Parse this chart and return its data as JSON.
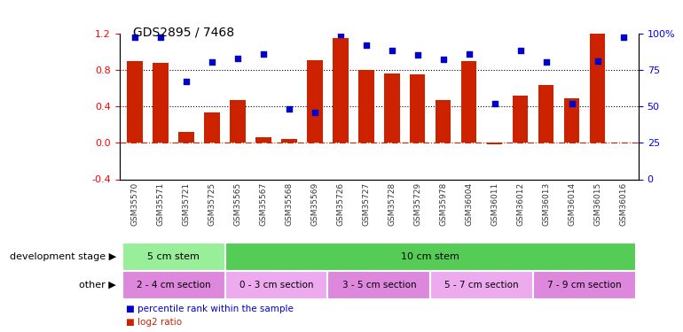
{
  "title": "GDS2895 / 7468",
  "samples": [
    "GSM35570",
    "GSM35571",
    "GSM35721",
    "GSM35725",
    "GSM35565",
    "GSM35567",
    "GSM35568",
    "GSM35569",
    "GSM35726",
    "GSM35727",
    "GSM35728",
    "GSM35729",
    "GSM35978",
    "GSM36004",
    "GSM36011",
    "GSM36012",
    "GSM36013",
    "GSM36014",
    "GSM36015",
    "GSM36016"
  ],
  "log2_ratio": [
    0.89,
    0.88,
    0.12,
    0.33,
    0.47,
    0.06,
    0.04,
    0.9,
    1.15,
    0.8,
    0.76,
    0.75,
    0.47,
    0.89,
    -0.02,
    0.52,
    0.63,
    0.49,
    1.2,
    0.0
  ],
  "percentile": [
    97,
    97,
    67,
    80,
    83,
    86,
    48,
    46,
    99,
    92,
    88,
    85,
    82,
    86,
    52,
    88,
    80,
    52,
    81,
    97
  ],
  "bar_color": "#cc2200",
  "dot_color": "#0000cc",
  "zero_line_color": "#cc2200",
  "grid_color": "#000000",
  "ylim_left": [
    -0.4,
    1.2
  ],
  "ylim_right": [
    0,
    100
  ],
  "yticks_left": [
    -0.4,
    0.0,
    0.4,
    0.8,
    1.2
  ],
  "yticks_right": [
    0,
    25,
    50,
    75,
    100
  ],
  "ytick_labels_right": [
    "0",
    "25",
    "50",
    "75",
    "100%"
  ],
  "xtick_bg_color": "#cccccc",
  "dev_stage_groups": [
    {
      "label": "5 cm stem",
      "start": 0,
      "end": 4,
      "color": "#99ee99"
    },
    {
      "label": "10 cm stem",
      "start": 4,
      "end": 20,
      "color": "#55cc55"
    }
  ],
  "other_groups": [
    {
      "label": "2 - 4 cm section",
      "start": 0,
      "end": 4,
      "color": "#dd88dd"
    },
    {
      "label": "0 - 3 cm section",
      "start": 4,
      "end": 8,
      "color": "#eeaaee"
    },
    {
      "label": "3 - 5 cm section",
      "start": 8,
      "end": 12,
      "color": "#dd88dd"
    },
    {
      "label": "5 - 7 cm section",
      "start": 12,
      "end": 16,
      "color": "#eeaaee"
    },
    {
      "label": "7 - 9 cm section",
      "start": 16,
      "end": 20,
      "color": "#dd88dd"
    }
  ],
  "dev_stage_label": "development stage",
  "other_label": "other",
  "legend_items": [
    {
      "color": "#cc2200",
      "label": "log2 ratio"
    },
    {
      "color": "#0000cc",
      "label": "percentile rank within the sample"
    }
  ],
  "bg_color": "#ffffff"
}
